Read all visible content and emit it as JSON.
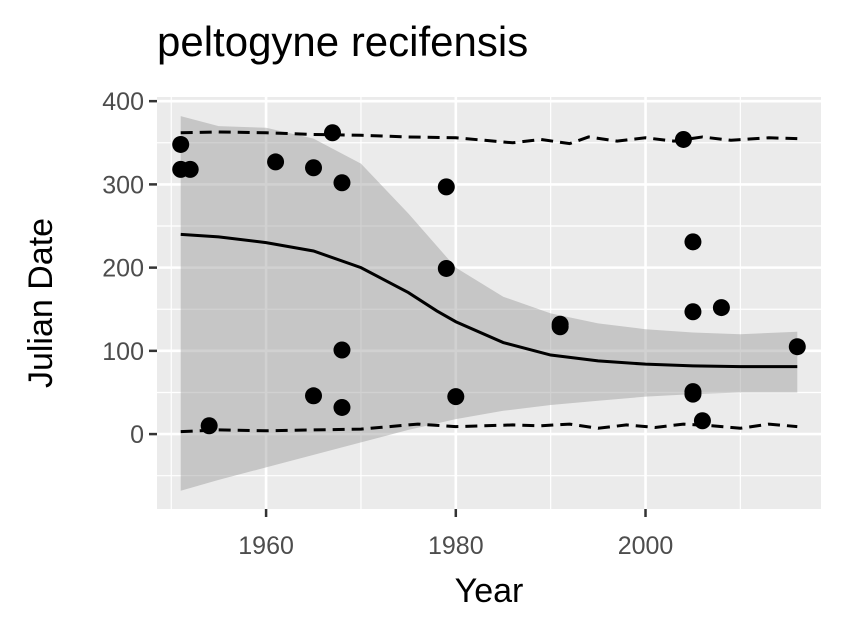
{
  "chart_data": {
    "type": "scatter",
    "title": "peltogyne recifensis",
    "xlabel": "Year",
    "ylabel": "Julian Date",
    "xlim": [
      1948.5,
      2018.5
    ],
    "ylim": [
      -90,
      405
    ],
    "x_ticks": [
      1960,
      1980,
      2000
    ],
    "x_tick_labels": [
      "1960",
      "1980",
      "2000"
    ],
    "y_ticks": [
      0,
      100,
      200,
      300,
      400
    ],
    "y_tick_labels": [
      "0",
      "100",
      "200",
      "300",
      "400"
    ],
    "grid": true,
    "background": "#ebebeb",
    "points": [
      {
        "x": 1951,
        "y": 348
      },
      {
        "x": 1951,
        "y": 318
      },
      {
        "x": 1952,
        "y": 318
      },
      {
        "x": 1954,
        "y": 10
      },
      {
        "x": 1961,
        "y": 327
      },
      {
        "x": 1965,
        "y": 320
      },
      {
        "x": 1965,
        "y": 46
      },
      {
        "x": 1967,
        "y": 362
      },
      {
        "x": 1968,
        "y": 302
      },
      {
        "x": 1968,
        "y": 101
      },
      {
        "x": 1968,
        "y": 32
      },
      {
        "x": 1979,
        "y": 297
      },
      {
        "x": 1979,
        "y": 199
      },
      {
        "x": 1980,
        "y": 45
      },
      {
        "x": 1991,
        "y": 132
      },
      {
        "x": 1991,
        "y": 129
      },
      {
        "x": 2004,
        "y": 354
      },
      {
        "x": 2005,
        "y": 231
      },
      {
        "x": 2005,
        "y": 147
      },
      {
        "x": 2005,
        "y": 51
      },
      {
        "x": 2005,
        "y": 48
      },
      {
        "x": 2006,
        "y": 16
      },
      {
        "x": 2008,
        "y": 152
      },
      {
        "x": 2016,
        "y": 105
      }
    ],
    "trend": {
      "x": [
        1951,
        1955,
        1960,
        1965,
        1970,
        1975,
        1978,
        1980,
        1985,
        1990,
        1995,
        2000,
        2005,
        2010,
        2016
      ],
      "y": [
        240,
        237,
        230,
        220,
        200,
        170,
        148,
        135,
        110,
        95,
        88,
        84,
        82,
        81,
        81
      ]
    },
    "confidence_band": {
      "x": [
        1951,
        1955,
        1960,
        1965,
        1970,
        1975,
        1980,
        1985,
        1990,
        1995,
        2000,
        2005,
        2010,
        2016
      ],
      "upper": [
        382,
        370,
        368,
        355,
        325,
        265,
        200,
        165,
        145,
        133,
        126,
        122,
        120,
        123
      ],
      "lower": [
        -68,
        -55,
        -40,
        -25,
        -10,
        5,
        18,
        28,
        35,
        40,
        45,
        48,
        50,
        50
      ]
    },
    "upper_dashed": {
      "x": [
        1951,
        1955,
        1960,
        1965,
        1970,
        1975,
        1980,
        1983,
        1986,
        1989,
        1992,
        1994,
        1997,
        2000,
        2003,
        2006,
        2009,
        2013,
        2016
      ],
      "y": [
        362,
        363,
        362,
        360,
        359,
        357,
        356,
        353,
        350,
        354,
        349,
        357,
        352,
        356,
        352,
        357,
        353,
        356,
        355
      ]
    },
    "lower_dashed": {
      "x": [
        1951,
        1955,
        1960,
        1965,
        1970,
        1973,
        1976,
        1980,
        1983,
        1986,
        1989,
        1992,
        1995,
        1998,
        2001,
        2004,
        2007,
        2010,
        2013,
        2016
      ],
      "y": [
        3,
        5,
        4,
        5,
        6,
        9,
        12,
        9,
        10,
        11,
        10,
        12,
        7,
        11,
        8,
        12,
        10,
        7,
        12,
        9
      ]
    }
  }
}
